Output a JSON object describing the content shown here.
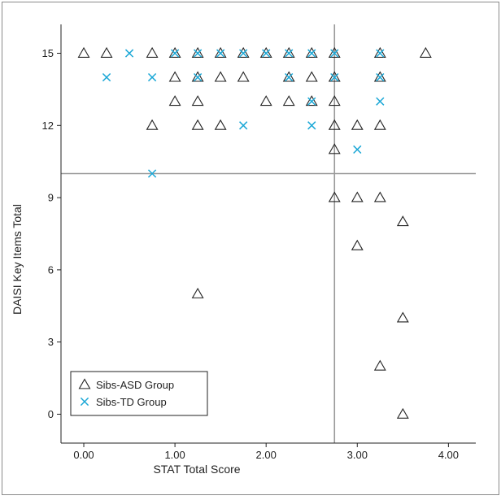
{
  "chart_data": {
    "type": "scatter",
    "xlabel": "STAT Total Score",
    "ylabel": "DAISI Key Items Total",
    "xlim": [
      -0.25,
      4.3
    ],
    "ylim": [
      -1.2,
      16.2
    ],
    "xticks": [
      0,
      1,
      2,
      3,
      4
    ],
    "xtick_labels": [
      "0.00",
      "1.00",
      "2.00",
      "3.00",
      "4.00"
    ],
    "yticks": [
      0,
      3,
      6,
      9,
      12,
      15
    ],
    "ytick_labels": [
      "0",
      "3",
      "6",
      "9",
      "12",
      "15"
    ],
    "reference_lines": {
      "x": 2.75,
      "y": 10
    },
    "reference_line_color": "#9a9a9a",
    "legend_position": "bottom-left",
    "grid": false,
    "series": [
      {
        "name": "Sibs-ASD Group",
        "marker": "triangle",
        "color": "#222222",
        "points": [
          [
            0.0,
            15
          ],
          [
            0.25,
            15
          ],
          [
            0.75,
            15
          ],
          [
            1.0,
            15
          ],
          [
            1.25,
            15
          ],
          [
            1.5,
            15
          ],
          [
            1.75,
            15
          ],
          [
            2.0,
            15
          ],
          [
            2.25,
            15
          ],
          [
            2.5,
            15
          ],
          [
            2.75,
            15
          ],
          [
            3.25,
            15
          ],
          [
            3.75,
            15
          ],
          [
            1.0,
            14
          ],
          [
            1.25,
            14
          ],
          [
            1.5,
            14
          ],
          [
            1.75,
            14
          ],
          [
            2.25,
            14
          ],
          [
            2.5,
            14
          ],
          [
            2.75,
            14
          ],
          [
            3.25,
            14
          ],
          [
            1.0,
            13
          ],
          [
            1.25,
            13
          ],
          [
            2.0,
            13
          ],
          [
            2.25,
            13
          ],
          [
            2.5,
            13
          ],
          [
            2.75,
            13
          ],
          [
            0.75,
            12
          ],
          [
            1.25,
            12
          ],
          [
            1.5,
            12
          ],
          [
            2.75,
            12
          ],
          [
            3.0,
            12
          ],
          [
            3.25,
            12
          ],
          [
            2.75,
            11
          ],
          [
            2.75,
            9
          ],
          [
            3.0,
            9
          ],
          [
            3.25,
            9
          ],
          [
            3.5,
            8
          ],
          [
            3.0,
            7
          ],
          [
            1.25,
            5
          ],
          [
            3.5,
            4
          ],
          [
            3.25,
            2
          ],
          [
            3.5,
            0
          ]
        ]
      },
      {
        "name": "Sibs-TD Group",
        "marker": "x",
        "color": "#1aa7d6",
        "points": [
          [
            0.5,
            15
          ],
          [
            1.0,
            15
          ],
          [
            1.25,
            15
          ],
          [
            1.5,
            15
          ],
          [
            1.75,
            15
          ],
          [
            2.0,
            15
          ],
          [
            2.25,
            15
          ],
          [
            2.5,
            15
          ],
          [
            2.75,
            15
          ],
          [
            3.25,
            15
          ],
          [
            0.25,
            14
          ],
          [
            0.75,
            14
          ],
          [
            1.25,
            14
          ],
          [
            2.25,
            14
          ],
          [
            2.75,
            14
          ],
          [
            3.25,
            14
          ],
          [
            2.5,
            13
          ],
          [
            3.25,
            13
          ],
          [
            1.75,
            12
          ],
          [
            2.5,
            12
          ],
          [
            3.0,
            11
          ],
          [
            0.75,
            10
          ]
        ]
      }
    ]
  }
}
